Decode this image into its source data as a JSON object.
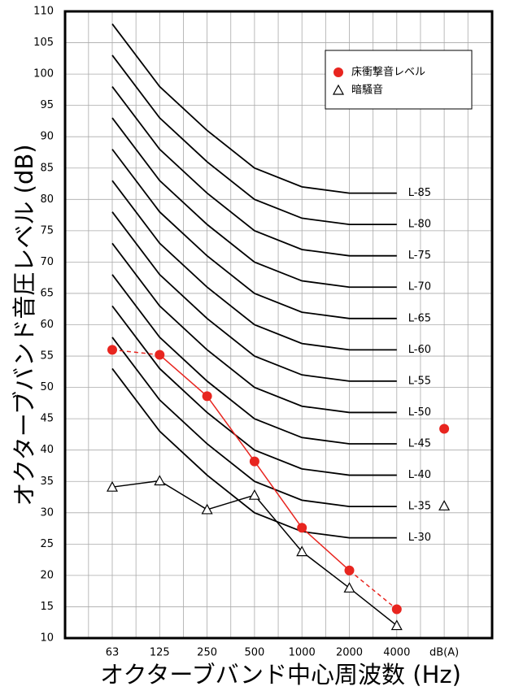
{
  "chart_data": {
    "type": "line",
    "xlabel": "オクターブバンド中心周波数 (Hz)",
    "ylabel": "オクターブバンド音圧レベル (dB)",
    "categories": [
      "63",
      "125",
      "250",
      "500",
      "1000",
      "2000",
      "4000",
      "dB(A)"
    ],
    "ylim": [
      10,
      110
    ],
    "yticks": [
      10,
      15,
      20,
      25,
      30,
      35,
      40,
      45,
      50,
      55,
      60,
      65,
      70,
      75,
      80,
      85,
      90,
      95,
      100,
      105,
      110
    ],
    "grid": true,
    "curves": [
      {
        "name": "L-85",
        "color": "#000000",
        "values": [
          108,
          98,
          91,
          85,
          82,
          81,
          81,
          null
        ]
      },
      {
        "name": "L-80",
        "color": "#000000",
        "values": [
          103,
          93,
          86,
          80,
          77,
          76,
          76,
          null
        ]
      },
      {
        "name": "L-75",
        "color": "#000000",
        "values": [
          98,
          88,
          81,
          75,
          72,
          71,
          71,
          null
        ]
      },
      {
        "name": "L-70",
        "color": "#000000",
        "values": [
          93,
          83,
          76,
          70,
          67,
          66,
          66,
          null
        ]
      },
      {
        "name": "L-65",
        "color": "#000000",
        "values": [
          88,
          78,
          71,
          65,
          62,
          61,
          61,
          null
        ]
      },
      {
        "name": "L-60",
        "color": "#000000",
        "values": [
          83,
          73,
          66,
          60,
          57,
          56,
          56,
          null
        ]
      },
      {
        "name": "L-55",
        "color": "#000000",
        "values": [
          78,
          68,
          61,
          55,
          52,
          51,
          51,
          null
        ]
      },
      {
        "name": "L-50",
        "color": "#000000",
        "values": [
          73,
          63,
          56,
          50,
          47,
          46,
          46,
          null
        ]
      },
      {
        "name": "L-45",
        "color": "#000000",
        "values": [
          68,
          58,
          51,
          45,
          42,
          41,
          41,
          null
        ]
      },
      {
        "name": "L-40",
        "color": "#000000",
        "values": [
          63,
          53,
          46,
          40,
          37,
          36,
          36,
          null
        ]
      },
      {
        "name": "L-35",
        "color": "#000000",
        "values": [
          58,
          48,
          41,
          35,
          32,
          31,
          31,
          null
        ]
      },
      {
        "name": "L-30",
        "color": "#000000",
        "values": [
          53,
          43,
          36,
          30,
          27,
          26,
          26,
          null
        ]
      }
    ],
    "series": [
      {
        "name": "床衝撃音レベル",
        "color": "#e8251f",
        "marker": "circle",
        "values": [
          56,
          55.2,
          48.6,
          38.2,
          27.6,
          20.8,
          14.6,
          43.4
        ]
      },
      {
        "name": "暗騒音",
        "color": "#000000",
        "marker": "triangle",
        "values": [
          34.1,
          35.1,
          30.5,
          32.8,
          23.8,
          18.0,
          12.0,
          31.1
        ]
      }
    ],
    "legend": "upper right"
  }
}
